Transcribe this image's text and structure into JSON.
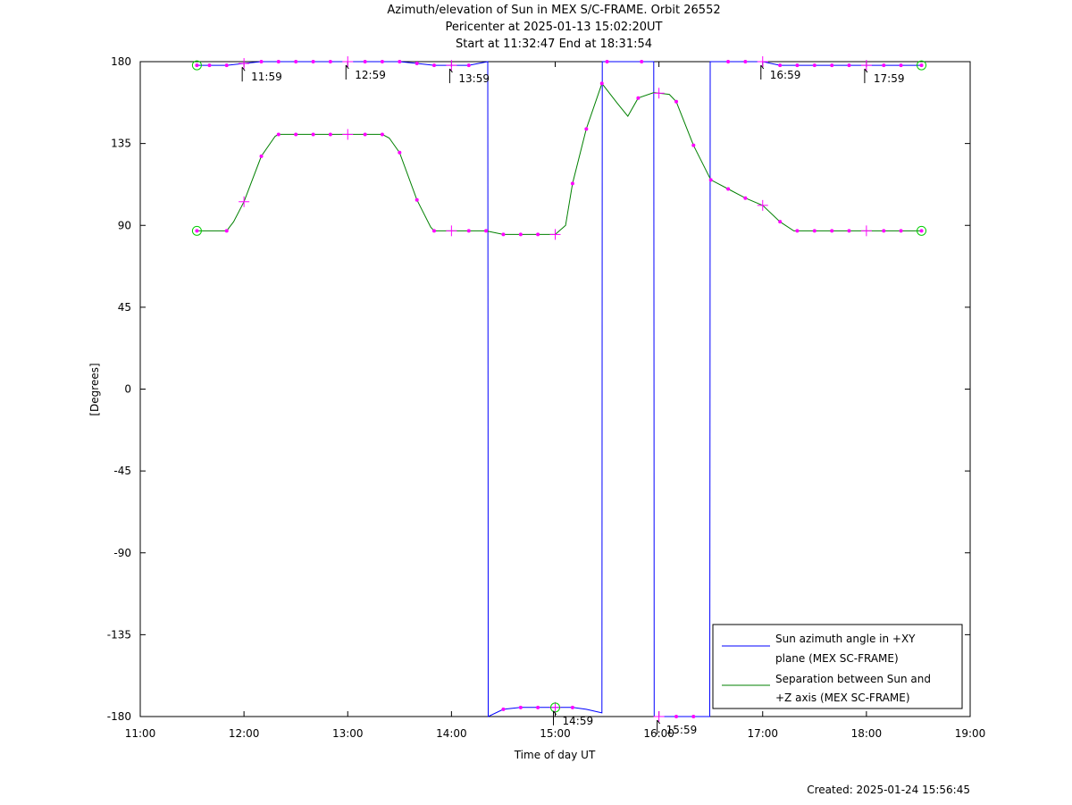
{
  "header": {
    "title": "Azimuth/elevation of Sun in MEX S/C-FRAME.  Orbit 26552",
    "pericenter": "Pericenter at 2025-01-13 15:02:20UT",
    "start_end": "Start at 11:32:47 End at 18:31:54"
  },
  "footer": {
    "created": "Created: 2025-01-24 15:56:45"
  },
  "colors": {
    "azimuth": "#0000ff",
    "separation": "#008000",
    "marker": "#ff00ff",
    "endpoint": "#00cc00"
  },
  "chart_data": {
    "type": "line",
    "title": "Azimuth/elevation of Sun in MEX S/C-FRAME.  Orbit 26552",
    "xlabel": "Time of day UT",
    "ylabel": "[Degrees]",
    "xlim": [
      11.0,
      19.0
    ],
    "ylim": [
      -180,
      180
    ],
    "x_ticks": [
      "11:00",
      "12:00",
      "13:00",
      "14:00",
      "15:00",
      "16:00",
      "17:00",
      "18:00",
      "19:00"
    ],
    "y_ticks": [
      "180",
      "135",
      "90",
      "45",
      "0",
      "-45",
      "-90",
      "-135",
      "-180"
    ],
    "legend_position": "bottom-right",
    "series": [
      {
        "name": "Sun azimuth angle in +XY plane (MEX SC-FRAME)",
        "color": "#0000ff",
        "x": [
          11.546,
          11.667,
          11.833,
          12.0,
          12.167,
          12.333,
          12.5,
          12.667,
          12.833,
          13.0,
          13.167,
          13.333,
          13.5,
          13.667,
          13.833,
          14.0,
          14.167,
          14.35,
          14.352,
          14.354,
          14.5,
          14.667,
          14.833,
          15.0,
          15.167,
          15.3,
          15.45,
          15.452,
          15.454,
          15.6,
          15.8,
          15.95,
          15.952,
          15.954,
          16.1,
          16.3,
          16.49,
          16.492,
          16.494,
          16.667,
          16.833,
          17.0,
          17.167,
          17.333,
          17.5,
          17.667,
          17.833,
          18.0,
          18.167,
          18.333,
          18.531
        ],
        "y": [
          178,
          178,
          178,
          179,
          180,
          180,
          180,
          180,
          180,
          180,
          180,
          180,
          180,
          179,
          178,
          178,
          178,
          180,
          0,
          -180,
          -176,
          -175,
          -175,
          -175,
          -175,
          -176,
          -178,
          0,
          180,
          180,
          180,
          180,
          0,
          -180,
          -180,
          -180,
          -180,
          0,
          180,
          180,
          180,
          180,
          178,
          178,
          178,
          178,
          178,
          178,
          178,
          178,
          178
        ],
        "markers_x": [
          11.667,
          11.833,
          12.167,
          12.333,
          12.5,
          12.667,
          12.833,
          13.167,
          13.333,
          13.5,
          13.667,
          13.833,
          14.167,
          14.5,
          14.667,
          14.833,
          15.167,
          15.5,
          15.833,
          16.167,
          16.333,
          16.667,
          16.833,
          17.167,
          17.333,
          17.5,
          17.667,
          17.833,
          18.167,
          18.333
        ]
      },
      {
        "name": "Separation between Sun and +Z axis (MEX SC-FRAME)",
        "color": "#008000",
        "x": [
          11.546,
          11.833,
          11.9,
          12.0,
          12.167,
          12.3,
          12.333,
          12.5,
          12.667,
          12.833,
          13.0,
          13.167,
          13.333,
          13.4,
          13.5,
          13.667,
          13.8,
          13.833,
          14.0,
          14.167,
          14.333,
          14.5,
          14.667,
          14.833,
          15.0,
          15.1,
          15.167,
          15.3,
          15.45,
          15.6,
          15.7,
          15.8,
          15.95,
          16.1,
          16.167,
          16.333,
          16.5,
          16.667,
          16.833,
          17.0,
          17.167,
          17.3,
          17.5,
          17.667,
          17.833,
          18.0,
          18.167,
          18.333,
          18.531
        ],
        "y": [
          87,
          87,
          92,
          103,
          128,
          139,
          140,
          140,
          140,
          140,
          140,
          140,
          140,
          138,
          130,
          104,
          89,
          87,
          87,
          87,
          87,
          85,
          85,
          85,
          85,
          90,
          113,
          143,
          168,
          157,
          150,
          160,
          163,
          162,
          158,
          134,
          115,
          110,
          105,
          101,
          92,
          87,
          87,
          87,
          87,
          87,
          87,
          87,
          87
        ],
        "markers_x": [
          11.833,
          12.167,
          12.333,
          12.5,
          12.667,
          12.833,
          13.167,
          13.333,
          13.5,
          13.667,
          13.833,
          14.167,
          14.333,
          14.5,
          14.667,
          14.833,
          15.167,
          15.3,
          15.45,
          15.8,
          16.167,
          16.333,
          16.5,
          16.667,
          16.833,
          17.167,
          17.333,
          17.5,
          17.667,
          17.833,
          18.167,
          18.333
        ],
        "plus_x": [
          12.0,
          13.0,
          14.0,
          15.0,
          16.0,
          17.0,
          18.0
        ]
      }
    ],
    "annotations": [
      {
        "time": 11.983,
        "label": "11:59"
      },
      {
        "time": 12.983,
        "label": "12:59"
      },
      {
        "time": 13.983,
        "label": "13:59"
      },
      {
        "time": 14.983,
        "label": "14:59"
      },
      {
        "time": 15.983,
        "label": "15:59"
      },
      {
        "time": 16.983,
        "label": "16:59"
      },
      {
        "time": 17.983,
        "label": "17:59"
      }
    ]
  },
  "legend": {
    "azimuth_line1": "Sun azimuth angle in +XY",
    "azimuth_line2": "plane (MEX SC-FRAME)",
    "separation_line1": "Separation between Sun and",
    "separation_line2": "+Z axis (MEX SC-FRAME)"
  }
}
